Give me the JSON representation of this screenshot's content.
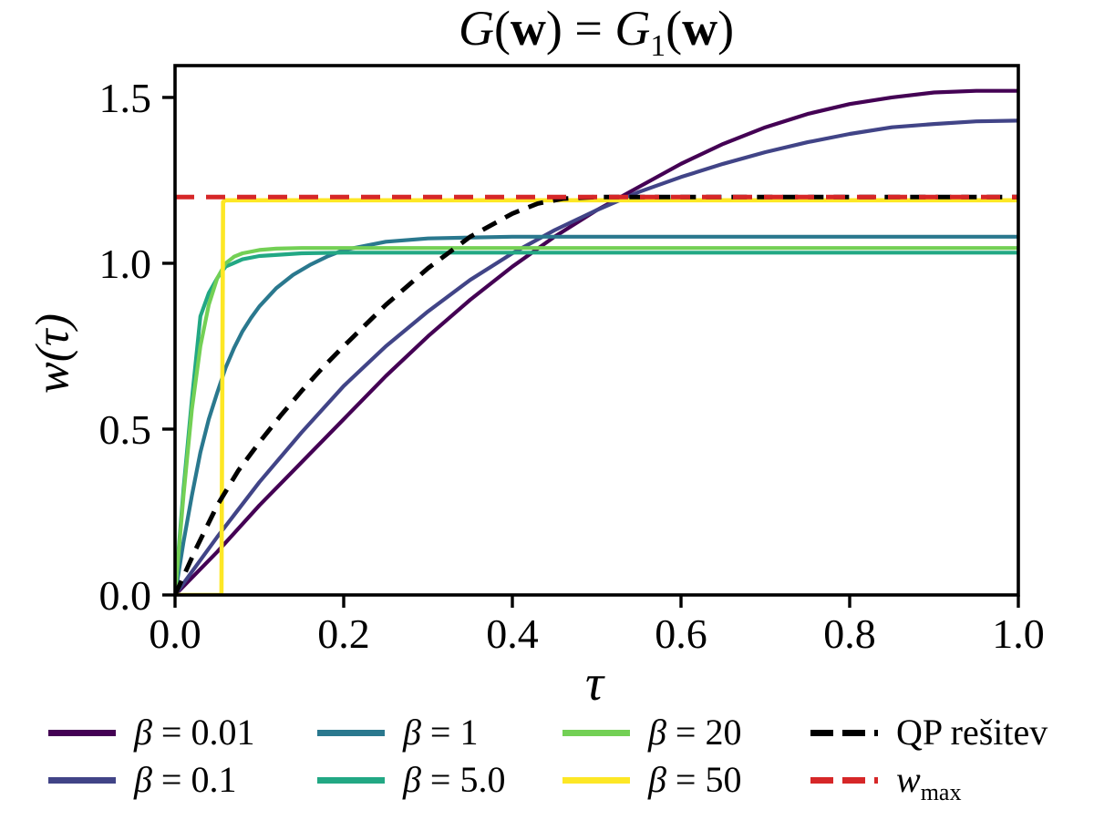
{
  "title": {
    "seg1": "G",
    "seg2": "(",
    "seg3": "w",
    "seg4": ") = ",
    "seg5": "G",
    "seg6": "1",
    "seg7": "(",
    "seg8": "w",
    "seg9": ")"
  },
  "labels": {
    "ylabel": "w(τ)",
    "xlabel": "τ"
  },
  "legend": {
    "items": [
      {
        "id": "beta-0.01",
        "sym": "β",
        "rest": " = 0.01",
        "sub": "",
        "color": "#440154",
        "dash": false
      },
      {
        "id": "beta-0.1",
        "sym": "β",
        "rest": " = 0.1",
        "sub": "",
        "color": "#414487",
        "dash": false
      },
      {
        "id": "beta-1",
        "sym": "β",
        "rest": " = 1",
        "sub": "",
        "color": "#2a788e",
        "dash": false
      },
      {
        "id": "beta-5.0",
        "sym": "β",
        "rest": " = 5.0",
        "sub": "",
        "color": "#22a884",
        "dash": false
      },
      {
        "id": "beta-20",
        "sym": "β",
        "rest": " = 20",
        "sub": "",
        "color": "#73d055",
        "dash": false
      },
      {
        "id": "beta-50",
        "sym": "β",
        "rest": " = 50",
        "sub": "",
        "color": "#fde725",
        "dash": false
      },
      {
        "id": "qp-resitev",
        "sym": "",
        "rest": "QP rešitev",
        "sub": "",
        "color": "#000000",
        "dash": true
      },
      {
        "id": "w-max",
        "sym": "w",
        "rest": "",
        "sub": "max",
        "color": "#d62728",
        "dash": true
      }
    ]
  },
  "chart_data": {
    "type": "line",
    "title": "G(w) = G₁(w)",
    "xlabel": "τ",
    "ylabel": "w(τ)",
    "xlim": [
      0,
      1
    ],
    "ylim": [
      0,
      1.596
    ],
    "grid": false,
    "legend_position": "bottom",
    "xticks": {
      "values": [
        0,
        0.2,
        0.4,
        0.6,
        0.8,
        1.0
      ],
      "labels": [
        "0.0",
        "0.2",
        "0.4",
        "0.6",
        "0.8",
        "1.0"
      ]
    },
    "yticks": {
      "values": [
        0,
        0.5,
        1.0,
        1.5
      ],
      "labels": [
        "0.0",
        "0.5",
        "1.0",
        "1.5"
      ]
    },
    "wmax_value": 1.2,
    "series": [
      {
        "id": "beta-0.01",
        "name": "β = 0.01",
        "color": "#440154",
        "style": "solid",
        "width": 4.2,
        "x": [
          0,
          0.05,
          0.1,
          0.15,
          0.2,
          0.25,
          0.3,
          0.35,
          0.4,
          0.45,
          0.5,
          0.55,
          0.6,
          0.65,
          0.7,
          0.75,
          0.8,
          0.85,
          0.9,
          0.95,
          1.0
        ],
        "y": [
          0,
          0.13,
          0.27,
          0.4,
          0.53,
          0.66,
          0.78,
          0.89,
          0.99,
          1.08,
          1.16,
          1.23,
          1.3,
          1.36,
          1.41,
          1.45,
          1.48,
          1.5,
          1.515,
          1.52,
          1.52
        ]
      },
      {
        "id": "beta-0.1",
        "name": "β = 0.1",
        "color": "#414487",
        "style": "solid",
        "width": 4.2,
        "x": [
          0,
          0.05,
          0.1,
          0.15,
          0.2,
          0.25,
          0.3,
          0.35,
          0.4,
          0.45,
          0.5,
          0.55,
          0.6,
          0.65,
          0.7,
          0.75,
          0.8,
          0.85,
          0.9,
          0.95,
          1.0
        ],
        "y": [
          0,
          0.175,
          0.34,
          0.49,
          0.63,
          0.75,
          0.855,
          0.95,
          1.03,
          1.1,
          1.16,
          1.215,
          1.26,
          1.3,
          1.335,
          1.365,
          1.39,
          1.41,
          1.42,
          1.428,
          1.43
        ]
      },
      {
        "id": "beta-1",
        "name": "β = 1",
        "color": "#2a788e",
        "style": "solid",
        "width": 4.2,
        "x": [
          0,
          0.01,
          0.02,
          0.03,
          0.04,
          0.05,
          0.06,
          0.07,
          0.08,
          0.09,
          0.1,
          0.12,
          0.14,
          0.16,
          0.18,
          0.2,
          0.25,
          0.3,
          0.4,
          0.6,
          1.0
        ],
        "y": [
          0,
          0.16,
          0.3,
          0.43,
          0.53,
          0.61,
          0.685,
          0.745,
          0.795,
          0.835,
          0.87,
          0.925,
          0.965,
          0.995,
          1.02,
          1.04,
          1.065,
          1.075,
          1.08,
          1.08,
          1.08
        ]
      },
      {
        "id": "beta-5.0",
        "name": "β = 5.0",
        "color": "#22a884",
        "style": "solid",
        "width": 4.2,
        "x": [
          0,
          0.01,
          0.02,
          0.03,
          0.04,
          0.05,
          0.06,
          0.08,
          0.1,
          0.15,
          0.2,
          0.4,
          1.0
        ],
        "y": [
          0,
          0.32,
          0.59,
          0.84,
          0.91,
          0.955,
          0.99,
          1.012,
          1.022,
          1.03,
          1.032,
          1.032,
          1.032
        ]
      },
      {
        "id": "beta-20",
        "name": "β = 20",
        "color": "#73d055",
        "style": "solid",
        "width": 4.2,
        "x": [
          0,
          0.01,
          0.02,
          0.03,
          0.04,
          0.05,
          0.06,
          0.07,
          0.08,
          0.1,
          0.12,
          0.15,
          0.2,
          1.0
        ],
        "y": [
          0,
          0.3,
          0.56,
          0.75,
          0.875,
          0.955,
          1.0,
          1.02,
          1.03,
          1.04,
          1.044,
          1.046,
          1.046,
          1.046
        ]
      },
      {
        "id": "beta-50",
        "name": "β = 50",
        "color": "#fde725",
        "style": "solid",
        "width": 4.6,
        "x": [
          0,
          0.055,
          0.057,
          0.06,
          1.0
        ],
        "y": [
          0,
          0,
          1.185,
          1.19,
          1.19
        ]
      },
      {
        "id": "qp-resitev",
        "name": "QP rešitev",
        "color": "#000000",
        "style": "dashed",
        "width": 5,
        "dash": "17 11",
        "x": [
          0,
          0.025,
          0.05,
          0.075,
          0.1,
          0.125,
          0.15,
          0.175,
          0.2,
          0.25,
          0.3,
          0.35,
          0.4,
          0.43,
          0.46,
          0.5,
          0.6,
          1.0
        ],
        "y": [
          0,
          0.14,
          0.27,
          0.375,
          0.46,
          0.54,
          0.615,
          0.685,
          0.75,
          0.875,
          0.985,
          1.08,
          1.15,
          1.18,
          1.195,
          1.2,
          1.2,
          1.2
        ]
      },
      {
        "id": "w-max",
        "name": "w_max",
        "color": "#d62728",
        "style": "dashed",
        "width": 5,
        "dash": "21 13",
        "x": [
          0,
          1
        ],
        "y": [
          1.2,
          1.2
        ]
      }
    ]
  }
}
